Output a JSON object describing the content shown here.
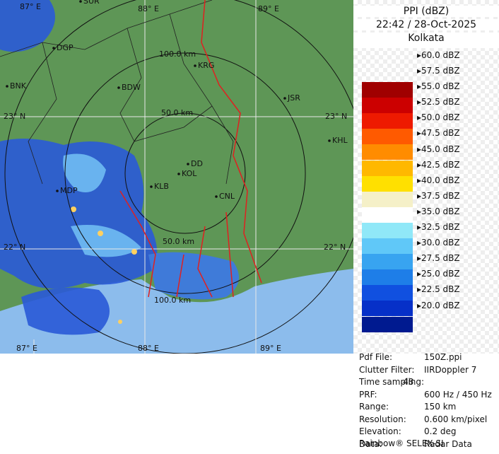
{
  "header": {
    "title": "PPI (dBZ)",
    "time": "22:42 / 28-Oct-2025",
    "station": "Kolkata"
  },
  "map": {
    "grid_labels": [
      "88° E",
      "89° E",
      "87° E",
      "88° E",
      "89° E",
      "23° N",
      "23° N",
      "22° N",
      "22° N",
      "87° E"
    ],
    "ring_labels": [
      "100.0 km",
      "50.0 km",
      "50.0 km",
      "100.0 km"
    ],
    "places": [
      "SUR",
      "DGP",
      "BNK",
      "BDW",
      "KRG",
      "JSR",
      "KHL",
      "DD",
      "KOL",
      "KLB",
      "MDP",
      "CNL"
    ]
  },
  "legend": {
    "labels": [
      "60.0 dBZ",
      "57.5 dBZ",
      "55.0 dBZ",
      "52.5 dBZ",
      "50.0 dBZ",
      "47.5 dBZ",
      "45.0 dBZ",
      "42.5 dBZ",
      "40.0 dBZ",
      "37.5 dBZ",
      "35.0 dBZ",
      "32.5 dBZ",
      "30.0 dBZ",
      "27.5 dBZ",
      "25.0 dBZ",
      "22.5 dBZ",
      "20.0 dBZ"
    ],
    "colors": [
      "#a00000",
      "#cc0000",
      "#ee1a00",
      "#ff5a00",
      "#ff8c00",
      "#ffb800",
      "#ffe000",
      "#f5f0c8",
      "#ffffff",
      "#90e8f8",
      "#60c8f8",
      "#38a4f0",
      "#1e7ee8",
      "#1050e0",
      "#0630c8",
      "#001a90"
    ]
  },
  "info": [
    {
      "label": "Pdf File:",
      "value": "150Z.ppi"
    },
    {
      "label": "Clutter Filter:",
      "value": "IIRDoppler 7"
    },
    {
      "label": "Time sampling:",
      "value": "48"
    },
    {
      "label": "PRF:",
      "value": "600 Hz / 450 Hz"
    },
    {
      "label": "Range:",
      "value": "150 km"
    },
    {
      "label": "Resolution:",
      "value": "0.600 km/pixel"
    },
    {
      "label": "Elevation:",
      "value": "0.2 deg"
    },
    {
      "label": "Data:",
      "value": "Radar Data"
    }
  ],
  "footer": "Rainbow® SELEX-SI"
}
